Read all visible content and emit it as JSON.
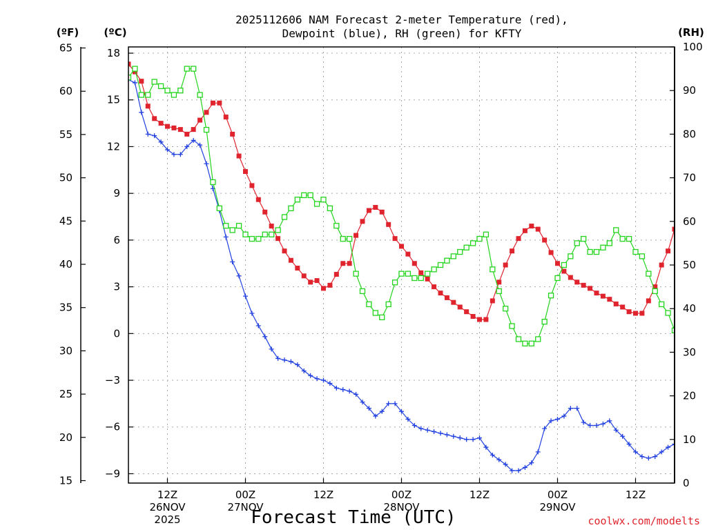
{
  "chart_data": {
    "type": "line",
    "title": [
      "2025112606 NAM Forecast 2-meter Temperature (red),",
      "Dewpoint (blue), RH (green) for KFTY"
    ],
    "xlabel": "Forecast Time (UTC)",
    "credit": "coolwx.com/modelts",
    "units": {
      "left_f": "(ºF)",
      "left_c": "(ºC)",
      "right": "(RH)"
    },
    "x_range_hours": [
      6,
      90
    ],
    "c_range": [
      -9.6,
      18.4
    ],
    "rh_range": [
      0,
      100
    ],
    "f_ticks": [
      "65",
      "60",
      "55",
      "50",
      "45",
      "40",
      "35",
      "30",
      "25",
      "20",
      "15"
    ],
    "c_ticks": [
      "18",
      "15",
      "12",
      "9",
      "6",
      "3",
      "0",
      "-3",
      "-6",
      "-9"
    ],
    "rh_ticks": [
      "100",
      "90",
      "80",
      "70",
      "60",
      "50",
      "40",
      "30",
      "20",
      "10",
      "0"
    ],
    "x_ticks": [
      {
        "hour": 12,
        "lines": [
          "12Z",
          "26NOV",
          "2025"
        ]
      },
      {
        "hour": 24,
        "lines": [
          "00Z",
          "27NOV"
        ]
      },
      {
        "hour": 36,
        "lines": [
          "12Z"
        ]
      },
      {
        "hour": 48,
        "lines": [
          "00Z",
          "28NOV"
        ]
      },
      {
        "hour": 60,
        "lines": [
          "12Z"
        ]
      },
      {
        "hour": 72,
        "lines": [
          "00Z",
          "29NOV"
        ]
      },
      {
        "hour": 84,
        "lines": [
          "12Z"
        ]
      }
    ],
    "series": [
      {
        "name": "Temperature",
        "units": "C",
        "color": "#e0242e",
        "marker": "filled-square",
        "x": [
          6,
          7,
          8,
          9,
          10,
          11,
          12,
          13,
          14,
          15,
          16,
          17,
          18,
          19,
          20,
          21,
          22,
          23,
          24,
          25,
          26,
          27,
          28,
          29,
          30,
          31,
          32,
          33,
          34,
          35,
          36,
          37,
          38,
          39,
          40,
          41,
          42,
          43,
          44,
          45,
          46,
          47,
          48,
          49,
          50,
          51,
          52,
          53,
          54,
          55,
          56,
          57,
          58,
          59,
          60,
          61,
          62,
          63,
          64,
          65,
          66,
          67,
          68,
          69,
          70,
          71,
          72,
          73,
          74,
          75,
          76,
          77,
          78,
          79,
          80,
          81,
          82,
          83,
          84,
          85,
          86,
          87,
          88,
          89,
          90
        ],
        "values": [
          17.3,
          16.8,
          16.2,
          14.6,
          13.8,
          13.5,
          13.3,
          13.2,
          13.1,
          12.8,
          13.1,
          13.7,
          14.2,
          14.8,
          14.8,
          13.9,
          12.8,
          11.4,
          10.4,
          9.5,
          8.6,
          7.8,
          6.9,
          6.1,
          5.3,
          4.7,
          4.2,
          3.7,
          3.3,
          3.4,
          2.9,
          3.1,
          3.8,
          4.5,
          4.5,
          6.3,
          7.2,
          7.9,
          8.1,
          7.8,
          7.0,
          6.1,
          5.6,
          5.1,
          4.5,
          3.9,
          3.5,
          3.0,
          2.6,
          2.3,
          2.0,
          1.7,
          1.4,
          1.1,
          0.9,
          0.9,
          2.1,
          3.3,
          4.4,
          5.3,
          6.1,
          6.6,
          6.9,
          6.7,
          6.0,
          5.2,
          4.5,
          4.0,
          3.6,
          3.3,
          3.1,
          2.9,
          2.6,
          2.4,
          2.2,
          1.9,
          1.7,
          1.4,
          1.3,
          1.3,
          2.1,
          3.0,
          4.4,
          5.3,
          6.7
        ]
      },
      {
        "name": "Dewpoint",
        "units": "C",
        "color": "#1f3fe0",
        "marker": "plus",
        "x": [
          6,
          7,
          8,
          9,
          10,
          11,
          12,
          13,
          14,
          15,
          16,
          17,
          18,
          19,
          20,
          21,
          22,
          23,
          24,
          25,
          26,
          27,
          28,
          29,
          30,
          31,
          32,
          33,
          34,
          35,
          36,
          37,
          38,
          39,
          40,
          41,
          42,
          43,
          44,
          45,
          46,
          47,
          48,
          49,
          50,
          51,
          52,
          53,
          54,
          55,
          56,
          57,
          58,
          59,
          60,
          61,
          62,
          63,
          64,
          65,
          66,
          67,
          68,
          69,
          70,
          71,
          72,
          73,
          74,
          75,
          76,
          77,
          78,
          79,
          80,
          81,
          82,
          83,
          84,
          85,
          86,
          87,
          88,
          89,
          90
        ],
        "values": [
          16.3,
          16.1,
          14.2,
          12.8,
          12.7,
          12.3,
          11.8,
          11.5,
          11.5,
          12.0,
          12.4,
          12.1,
          10.9,
          9.3,
          7.9,
          6.2,
          4.6,
          3.7,
          2.4,
          1.3,
          0.5,
          -0.2,
          -1.0,
          -1.6,
          -1.7,
          -1.8,
          -2.0,
          -2.4,
          -2.7,
          -2.9,
          -3.0,
          -3.2,
          -3.5,
          -3.6,
          -3.7,
          -3.9,
          -4.4,
          -4.8,
          -5.3,
          -5.0,
          -4.5,
          -4.5,
          -5.0,
          -5.5,
          -5.9,
          -6.1,
          -6.2,
          -6.3,
          -6.4,
          -6.5,
          -6.6,
          -6.7,
          -6.8,
          -6.8,
          -6.7,
          -7.3,
          -7.8,
          -8.1,
          -8.4,
          -8.8,
          -8.8,
          -8.6,
          -8.3,
          -7.6,
          -6.1,
          -5.6,
          -5.5,
          -5.3,
          -4.8,
          -4.8,
          -5.7,
          -5.9,
          -5.9,
          -5.8,
          -5.6,
          -6.2,
          -6.6,
          -7.1,
          -7.6,
          -7.9,
          -8.0,
          -7.9,
          -7.6,
          -7.3,
          -7.1
        ]
      },
      {
        "name": "RH",
        "units": "%",
        "color": "#22d41c",
        "marker": "open-square",
        "x": [
          6,
          7,
          8,
          9,
          10,
          11,
          12,
          13,
          14,
          15,
          16,
          17,
          18,
          19,
          20,
          21,
          22,
          23,
          24,
          25,
          26,
          27,
          28,
          29,
          30,
          31,
          32,
          33,
          34,
          35,
          36,
          37,
          38,
          39,
          40,
          41,
          42,
          43,
          44,
          45,
          46,
          47,
          48,
          49,
          50,
          51,
          52,
          53,
          54,
          55,
          56,
          57,
          58,
          59,
          60,
          61,
          62,
          63,
          64,
          65,
          66,
          67,
          68,
          69,
          70,
          71,
          72,
          73,
          74,
          75,
          76,
          77,
          78,
          79,
          80,
          81,
          82,
          83,
          84,
          85,
          86,
          87,
          88,
          89,
          90
        ],
        "values": [
          93,
          95,
          89,
          89,
          92,
          91,
          90,
          89,
          90,
          95,
          95,
          89,
          81,
          69,
          63,
          59,
          58,
          59,
          57,
          56,
          56,
          57,
          57,
          58,
          61,
          63,
          65,
          66,
          66,
          64,
          65,
          63,
          59,
          56,
          56,
          48,
          44,
          41,
          39,
          38,
          41,
          46,
          48,
          48,
          47,
          47,
          48,
          49,
          50,
          51,
          52,
          53,
          54,
          55,
          56,
          57,
          49,
          44,
          40,
          36,
          33,
          32,
          32,
          33,
          37,
          43,
          47,
          50,
          52,
          55,
          56,
          53,
          53,
          54,
          55,
          58,
          56,
          56,
          53,
          52,
          48,
          44,
          41,
          39,
          35
        ]
      }
    ]
  }
}
